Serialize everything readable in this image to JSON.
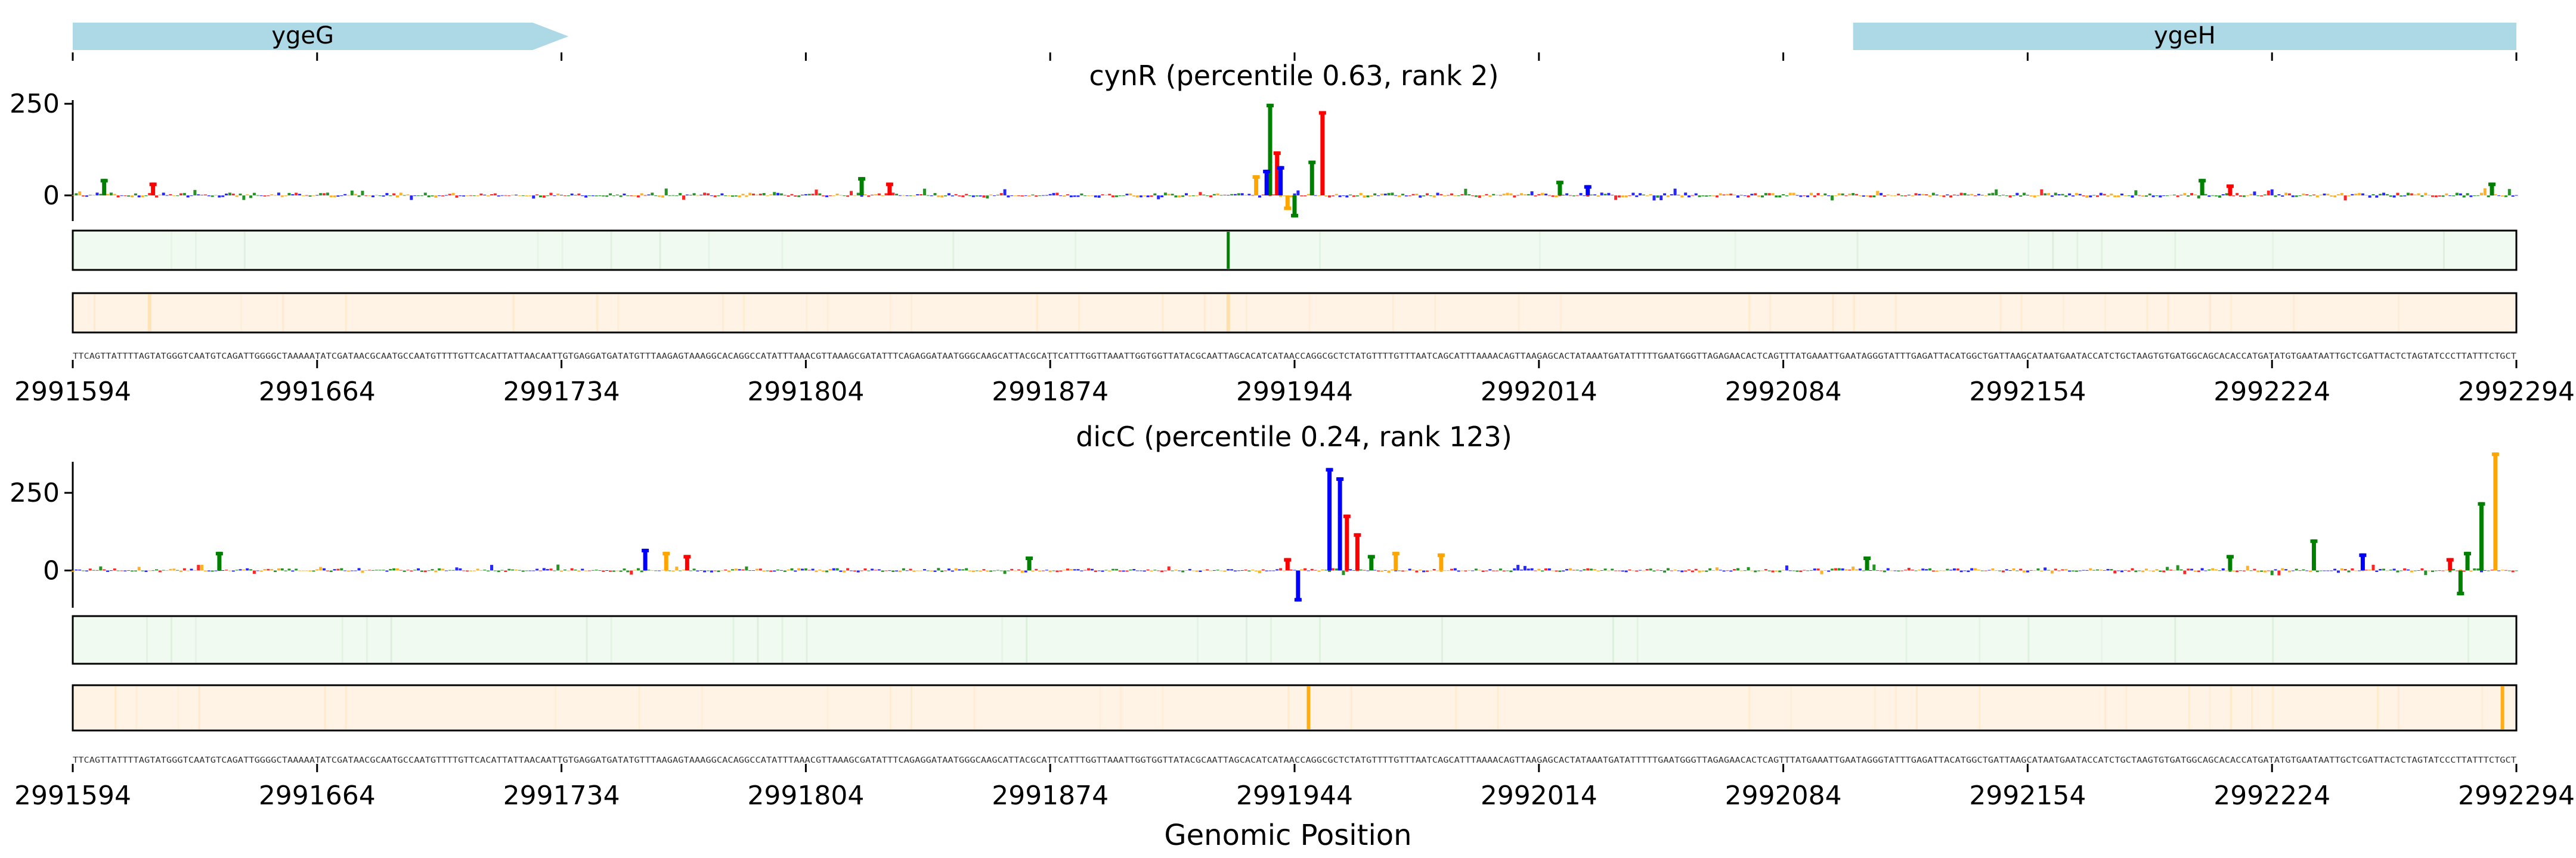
{
  "genes": [
    {
      "name": "ygeG",
      "start": 2991594,
      "end": 2991736,
      "strand": "+",
      "color": "#add8e6"
    },
    {
      "name": "ygeH",
      "start": 2992104,
      "end": 2992294,
      "strand": "+",
      "color": "#add8e6"
    }
  ],
  "x_axis": {
    "ticks": [
      "2991594",
      "2991664",
      "2991734",
      "2991804",
      "2991874",
      "2991944",
      "2992014",
      "2992084",
      "2992154",
      "2992224",
      "2992294"
    ],
    "tick_values": [
      2991594,
      2991664,
      2991734,
      2991804,
      2991874,
      2991944,
      2992014,
      2992084,
      2992154,
      2992224,
      2992294
    ],
    "label": "Genomic Position",
    "range": [
      2991594,
      2992294
    ]
  },
  "base_colors": {
    "A": "#008000",
    "C": "#0000ff",
    "G": "#ffa500",
    "T": "#ff0000"
  },
  "track_colors": {
    "green": "#008000",
    "green_bg": "#f1faf1",
    "orange": "#ffa500",
    "orange_bg": "#fff3e6"
  },
  "sequence": "TTCAGTTATTTTAGTATGGGTCAATGTCAGATTGGGGCTAAAAATATCGATAACGCAATGCCAATGTTTTGTTCACATTATTAACAATTGTGAGGATGATATGTTTAAGAGTAAAGGCACAGGCCATATTTAAACGTTAAAGCGATATTTCAGAGGATAATGGGCAAGCATTACGCATTCATTTGGTTAAATTGGTGGTTATACGCAATTAGCACATCATAACCAGGCGCTCTATGTTTTGTTTAATCAGCATTTAAAACAGTTAAGAGCACTATAAATGATATTTTTGAATGGGTTAGAGAACACTCAGTTTATGAAATTGAATAGGGTATTTGAGATTACATGGCTGATTAAGCATAATGAATACCATCTGCTAAGTGTGATGGCAGCACACCATGATATGTGAATAATTGCTCGATTACTCTAGTATCCCTTATTTCTGCT",
  "panels": [
    {
      "title": "cynR (percentile 0.63, rank 2)",
      "yticks": [
        "250",
        "0"
      ],
      "ytick_values": [
        250,
        0
      ],
      "ylim": [
        -70,
        260
      ],
      "chart_data": {
        "type": "sequence-logo",
        "x_range": [
          2991594,
          2992294
        ],
        "peaks": [
          {
            "x": 2991937,
            "value": 250,
            "base": "A"
          },
          {
            "x": 2991952,
            "value": 230,
            "base": "T"
          },
          {
            "x": 2991949,
            "value": 95,
            "base": "A"
          },
          {
            "x": 2991939,
            "value": 120,
            "base": "T"
          },
          {
            "x": 2991940,
            "value": 80,
            "base": "C"
          },
          {
            "x": 2991936,
            "value": 70,
            "base": "C"
          },
          {
            "x": 2991933,
            "value": 55,
            "base": "G"
          },
          {
            "x": 2991944,
            "value": -60,
            "base": "A"
          },
          {
            "x": 2991942,
            "value": -40,
            "base": "G"
          },
          {
            "x": 2991603,
            "value": 45,
            "base": "A"
          },
          {
            "x": 2991617,
            "value": 35,
            "base": "T"
          },
          {
            "x": 2991820,
            "value": 50,
            "base": "A"
          },
          {
            "x": 2991828,
            "value": 35,
            "base": "T"
          },
          {
            "x": 2992020,
            "value": 40,
            "base": "A"
          },
          {
            "x": 2992028,
            "value": 28,
            "base": "C"
          },
          {
            "x": 2992204,
            "value": 45,
            "base": "A"
          },
          {
            "x": 2992212,
            "value": 30,
            "base": "T"
          },
          {
            "x": 2992287,
            "value": 35,
            "base": "A"
          }
        ],
        "green_track": [
          {
            "x": 2991925,
            "value": 1.0
          }
        ],
        "orange_track": [
          {
            "x": 2991616,
            "value": 0.2
          },
          {
            "x": 2991925,
            "value": 0.25
          }
        ]
      }
    },
    {
      "title": "dicC (percentile 0.24, rank 123)",
      "yticks": [
        "250",
        "0"
      ],
      "ytick_values": [
        250,
        0
      ],
      "ylim": [
        -120,
        350
      ],
      "chart_data": {
        "type": "sequence-logo",
        "x_range": [
          2991594,
          2992294
        ],
        "peaks": [
          {
            "x": 2991954,
            "value": 330,
            "base": "C"
          },
          {
            "x": 2991957,
            "value": 300,
            "base": "C"
          },
          {
            "x": 2991959,
            "value": 180,
            "base": "T"
          },
          {
            "x": 2991962,
            "value": 120,
            "base": "T"
          },
          {
            "x": 2991966,
            "value": 50,
            "base": "A"
          },
          {
            "x": 2991973,
            "value": 60,
            "base": "G"
          },
          {
            "x": 2991945,
            "value": -100,
            "base": "C"
          },
          {
            "x": 2991942,
            "value": 40,
            "base": "T"
          },
          {
            "x": 2992288,
            "value": 380,
            "base": "G"
          },
          {
            "x": 2992284,
            "value": 220,
            "base": "A"
          },
          {
            "x": 2992280,
            "value": 60,
            "base": "A"
          },
          {
            "x": 2992275,
            "value": 40,
            "base": "T"
          },
          {
            "x": 2992278,
            "value": -80,
            "base": "A"
          },
          {
            "x": 2991758,
            "value": 70,
            "base": "C"
          },
          {
            "x": 2991764,
            "value": 60,
            "base": "G"
          },
          {
            "x": 2991770,
            "value": 50,
            "base": "T"
          },
          {
            "x": 2991636,
            "value": 60,
            "base": "A"
          },
          {
            "x": 2992236,
            "value": 100,
            "base": "A"
          },
          {
            "x": 2992250,
            "value": 55,
            "base": "C"
          },
          {
            "x": 2992212,
            "value": 50,
            "base": "A"
          },
          {
            "x": 2991868,
            "value": 45,
            "base": "A"
          },
          {
            "x": 2991986,
            "value": 55,
            "base": "G"
          },
          {
            "x": 2992108,
            "value": 45,
            "base": "A"
          }
        ],
        "green_track": [],
        "orange_track": [
          {
            "x": 2991948,
            "value": 0.9
          },
          {
            "x": 2992290,
            "value": 0.9
          }
        ]
      }
    }
  ]
}
